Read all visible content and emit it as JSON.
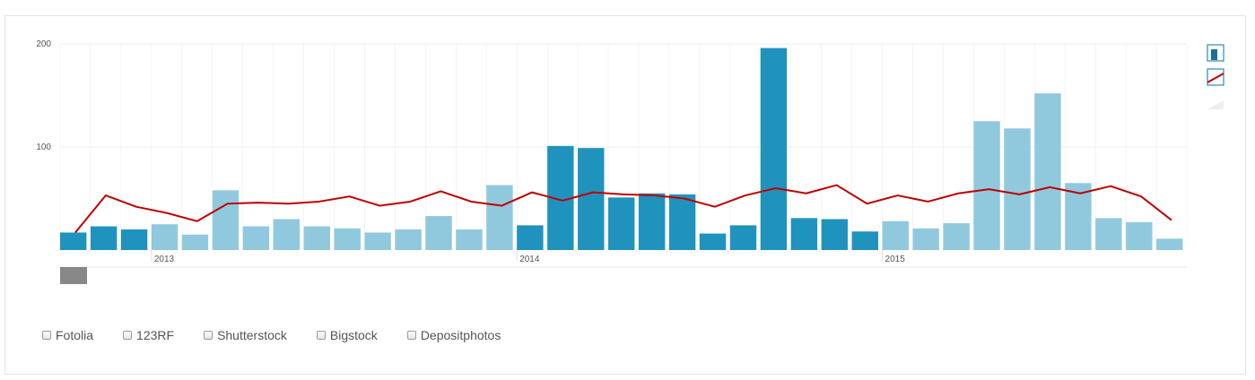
{
  "colors": {
    "bar_dark": "#1f93bd",
    "bar_light": "#90c9de",
    "line": "#c00000",
    "grid": "#eeeeee",
    "navigator": "#888888"
  },
  "chart_data": {
    "type": "bar",
    "x_labels": [
      "2013",
      "2014",
      "2015"
    ],
    "y_ticks": [
      100,
      200
    ],
    "ylim": [
      0,
      200
    ],
    "grid": true,
    "bars": [
      {
        "value": 17,
        "shade": "dark"
      },
      {
        "value": 23,
        "shade": "dark"
      },
      {
        "value": 20,
        "shade": "dark"
      },
      {
        "value": 25,
        "shade": "light"
      },
      {
        "value": 15,
        "shade": "light"
      },
      {
        "value": 58,
        "shade": "light"
      },
      {
        "value": 23,
        "shade": "light"
      },
      {
        "value": 30,
        "shade": "light"
      },
      {
        "value": 23,
        "shade": "light"
      },
      {
        "value": 21,
        "shade": "light"
      },
      {
        "value": 17,
        "shade": "light"
      },
      {
        "value": 20,
        "shade": "light"
      },
      {
        "value": 33,
        "shade": "light"
      },
      {
        "value": 20,
        "shade": "light"
      },
      {
        "value": 63,
        "shade": "light"
      },
      {
        "value": 24,
        "shade": "dark"
      },
      {
        "value": 101,
        "shade": "dark"
      },
      {
        "value": 99,
        "shade": "dark"
      },
      {
        "value": 51,
        "shade": "dark"
      },
      {
        "value": 55,
        "shade": "dark"
      },
      {
        "value": 54,
        "shade": "dark"
      },
      {
        "value": 16,
        "shade": "dark"
      },
      {
        "value": 24,
        "shade": "dark"
      },
      {
        "value": 196,
        "shade": "dark"
      },
      {
        "value": 31,
        "shade": "dark"
      },
      {
        "value": 30,
        "shade": "dark"
      },
      {
        "value": 18,
        "shade": "dark"
      },
      {
        "value": 28,
        "shade": "light"
      },
      {
        "value": 21,
        "shade": "light"
      },
      {
        "value": 26,
        "shade": "light"
      },
      {
        "value": 125,
        "shade": "light"
      },
      {
        "value": 118,
        "shade": "light"
      },
      {
        "value": 152,
        "shade": "light"
      },
      {
        "value": 65,
        "shade": "light"
      },
      {
        "value": 31,
        "shade": "light"
      },
      {
        "value": 27,
        "shade": "light"
      },
      {
        "value": 11,
        "shade": "light"
      }
    ],
    "line": [
      17,
      53,
      42,
      36,
      28,
      45,
      46,
      45,
      47,
      52,
      43,
      47,
      57,
      47,
      43,
      56,
      48,
      56,
      54,
      53,
      50,
      42,
      53,
      60,
      55,
      63,
      45,
      53,
      47,
      55,
      59,
      54,
      61,
      55,
      62,
      52,
      29
    ],
    "year_starts": [
      3,
      15,
      27
    ]
  },
  "legend": [
    {
      "label": "Fotolia"
    },
    {
      "label": "123RF"
    },
    {
      "label": "Shutterstock"
    },
    {
      "label": "Bigstock"
    },
    {
      "label": "Depositphotos"
    }
  ],
  "toggles": [
    {
      "icon": "bar-chart-icon"
    },
    {
      "icon": "line-chart-icon"
    },
    {
      "icon": "area-chart-icon"
    }
  ]
}
